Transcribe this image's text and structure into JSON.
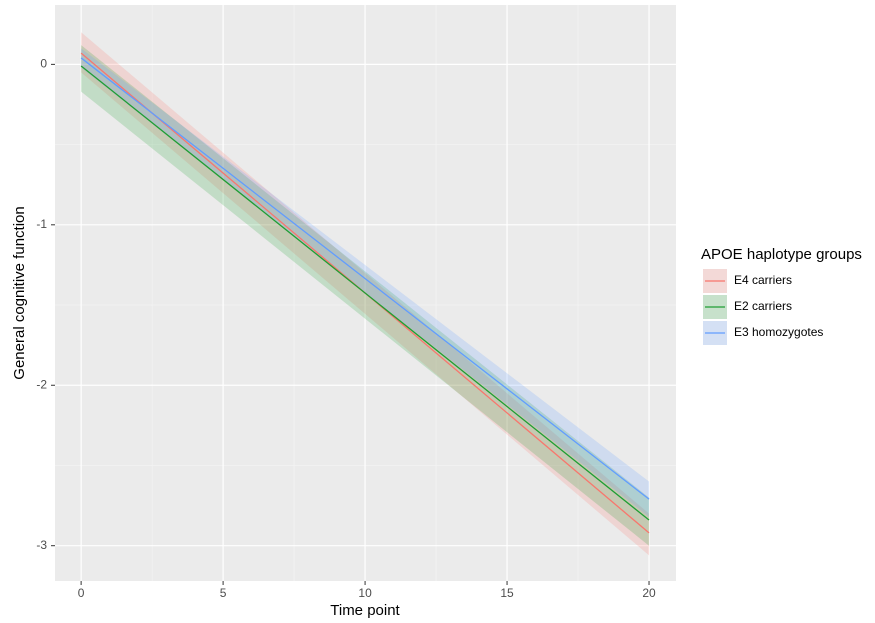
{
  "chart_data": {
    "type": "line",
    "x_label": "Time point",
    "y_label": "General cognitive function",
    "legend_title": "APOE haplotype groups",
    "legend": "right",
    "x": [
      0,
      20
    ],
    "series": [
      {
        "name": "E4 carriers",
        "color": "#f8766d",
        "values": [
          0.07,
          -2.92
        ],
        "lower": [
          -0.05,
          -3.06
        ],
        "upper": [
          0.2,
          -2.8
        ]
      },
      {
        "name": "E2 carriers",
        "color": "#1f9e33",
        "values": [
          -0.01,
          -2.84
        ],
        "lower": [
          -0.17,
          -3.0
        ],
        "upper": [
          0.12,
          -2.7
        ]
      },
      {
        "name": "E3 homozygotes",
        "color": "#619cff",
        "values": [
          0.04,
          -2.71
        ],
        "lower": [
          -0.02,
          -2.82
        ],
        "upper": [
          0.1,
          -2.6
        ]
      }
    ],
    "xlim": [
      -0.92,
      20.95
    ],
    "ylim": [
      -3.22,
      0.37
    ],
    "xticks": [
      0,
      5,
      10,
      15,
      20
    ],
    "yticks": [
      0,
      -1,
      -2,
      -3
    ],
    "minor_xticks": [
      2.5,
      7.5,
      12.5,
      17.5
    ],
    "minor_yticks": [
      -0.5,
      -1.5,
      -2.5
    ],
    "grid": true
  }
}
